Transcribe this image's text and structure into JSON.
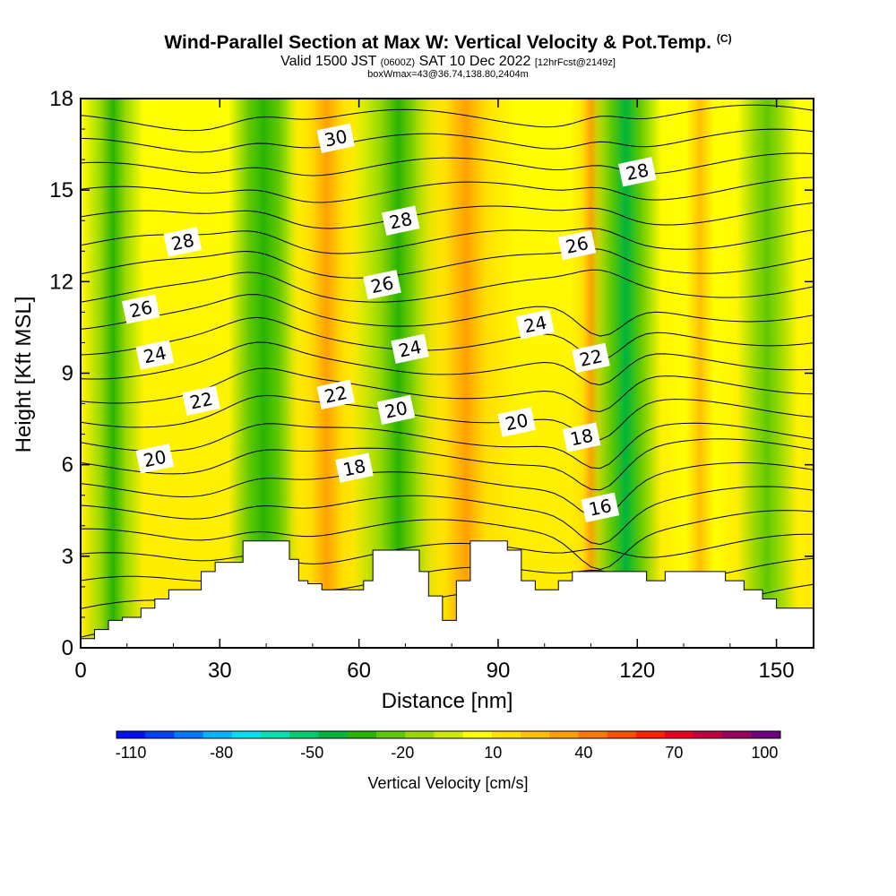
{
  "title": {
    "main": "Wind-Parallel Section at Max W: Vertical Velocity & Pot.Temp.",
    "copyright": "(C)",
    "valid_a": "Valid 1500 JST",
    "valid_zulu": "(0600Z)",
    "valid_b": "SAT 10 Dec 2022",
    "forecast": "[12hrFcst@2149z]",
    "boxwmax": "boxWmax=43@36.74,138.80,2404m"
  },
  "chart_data": {
    "type": "heatmap",
    "xlabel": "Distance [nm]",
    "ylabel": "Height [Kft MSL]",
    "xlim": [
      0,
      158
    ],
    "ylim": [
      0,
      18
    ],
    "x_ticks": [
      0,
      30,
      60,
      90,
      120,
      150
    ],
    "y_ticks": [
      0,
      3,
      6,
      9,
      12,
      15,
      18
    ],
    "grid": false,
    "legend_placement": "bottom",
    "colorbar": {
      "title": "Vertical Velocity [cm/s]",
      "tick_labels": [
        -110,
        -80,
        -50,
        -20,
        10,
        40,
        70,
        100
      ],
      "range": [
        -110,
        110
      ],
      "colors": [
        "#0010f0",
        "#0040f8",
        "#0078ff",
        "#00b4ff",
        "#00e0f0",
        "#00e0b0",
        "#00cc70",
        "#00b43c",
        "#28b400",
        "#60c800",
        "#98d800",
        "#d0e800",
        "#ffff00",
        "#ffe000",
        "#ffc000",
        "#ffa000",
        "#ff7800",
        "#ff5000",
        "#ff2000",
        "#e80020",
        "#c00040",
        "#980060",
        "#700080"
      ]
    },
    "vertical_velocity_bands": [
      {
        "x": [
          4,
          10
        ],
        "value": -25
      },
      {
        "x": [
          36,
          43
        ],
        "value": -30
      },
      {
        "x": [
          49,
          57
        ],
        "value": 35
      },
      {
        "x": [
          64,
          73
        ],
        "value": -25
      },
      {
        "x": [
          78,
          88
        ],
        "value": 40
      },
      {
        "x": [
          108,
          112
        ],
        "value": 40
      },
      {
        "x": [
          114,
          121
        ],
        "value": -40
      },
      {
        "x": [
          130,
          137
        ],
        "value": 25
      },
      {
        "x": [
          145,
          151
        ],
        "value": -15
      }
    ],
    "terrain": [
      {
        "x": 0,
        "y": 0.3
      },
      {
        "x": 3,
        "y": 0.6
      },
      {
        "x": 6,
        "y": 0.9
      },
      {
        "x": 9,
        "y": 1.0
      },
      {
        "x": 13,
        "y": 1.3
      },
      {
        "x": 16,
        "y": 1.6
      },
      {
        "x": 19,
        "y": 1.9
      },
      {
        "x": 26,
        "y": 2.5
      },
      {
        "x": 29,
        "y": 2.8
      },
      {
        "x": 35,
        "y": 3.5
      },
      {
        "x": 42,
        "y": 3.5
      },
      {
        "x": 45,
        "y": 2.9
      },
      {
        "x": 47,
        "y": 2.2
      },
      {
        "x": 49,
        "y": 2.1
      },
      {
        "x": 52,
        "y": 1.9
      },
      {
        "x": 58,
        "y": 1.9
      },
      {
        "x": 61,
        "y": 2.2
      },
      {
        "x": 63,
        "y": 3.2
      },
      {
        "x": 71,
        "y": 3.2
      },
      {
        "x": 73,
        "y": 2.5
      },
      {
        "x": 75,
        "y": 1.7
      },
      {
        "x": 78,
        "y": 0.9
      },
      {
        "x": 81,
        "y": 2.2
      },
      {
        "x": 84,
        "y": 3.5
      },
      {
        "x": 89,
        "y": 3.5
      },
      {
        "x": 92,
        "y": 3.2
      },
      {
        "x": 95,
        "y": 2.2
      },
      {
        "x": 98,
        "y": 1.9
      },
      {
        "x": 103,
        "y": 2.2
      },
      {
        "x": 106,
        "y": 2.5
      },
      {
        "x": 114,
        "y": 2.5
      },
      {
        "x": 122,
        "y": 2.2
      },
      {
        "x": 126,
        "y": 2.5
      },
      {
        "x": 134,
        "y": 2.5
      },
      {
        "x": 139,
        "y": 2.2
      },
      {
        "x": 143,
        "y": 1.9
      },
      {
        "x": 147,
        "y": 1.6
      },
      {
        "x": 150,
        "y": 1.3
      },
      {
        "x": 158,
        "y": 1.3
      }
    ],
    "isentrope_labels": [
      {
        "value": "30",
        "x": 55,
        "y": 16.7
      },
      {
        "value": "28",
        "x": 69,
        "y": 14.0
      },
      {
        "value": "28",
        "x": 120,
        "y": 15.6
      },
      {
        "value": "28",
        "x": 22,
        "y": 13.3
      },
      {
        "value": "26",
        "x": 107,
        "y": 13.2
      },
      {
        "value": "26",
        "x": 65,
        "y": 11.9
      },
      {
        "value": "26",
        "x": 13,
        "y": 11.1
      },
      {
        "value": "24",
        "x": 98,
        "y": 10.6
      },
      {
        "value": "24",
        "x": 71,
        "y": 9.8
      },
      {
        "value": "24",
        "x": 16,
        "y": 9.6
      },
      {
        "value": "22",
        "x": 110,
        "y": 9.5
      },
      {
        "value": "22",
        "x": 55,
        "y": 8.3
      },
      {
        "value": "22",
        "x": 26,
        "y": 8.1
      },
      {
        "value": "20",
        "x": 68,
        "y": 7.8
      },
      {
        "value": "20",
        "x": 94,
        "y": 7.4
      },
      {
        "value": "20",
        "x": 16,
        "y": 6.2
      },
      {
        "value": "18",
        "x": 108,
        "y": 6.9
      },
      {
        "value": "18",
        "x": 59,
        "y": 5.9
      },
      {
        "value": "16",
        "x": 112,
        "y": 4.6
      }
    ]
  }
}
